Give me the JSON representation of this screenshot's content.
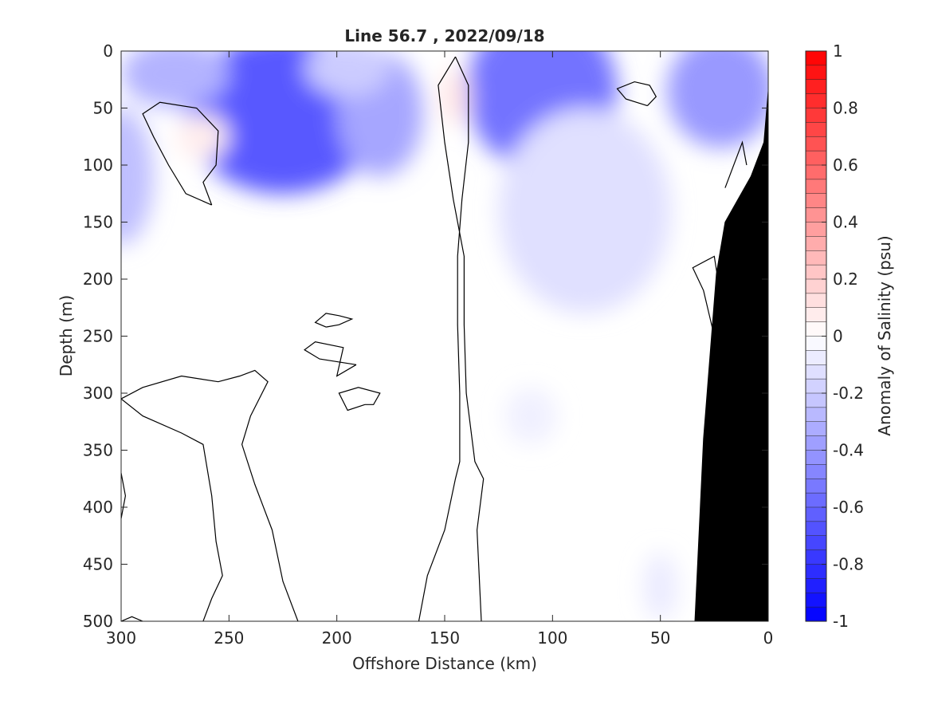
{
  "chart_data": {
    "type": "heatmap",
    "title": "Line 56.7 , 2022/09/18",
    "xlabel": "Offshore Distance (km)",
    "ylabel": "Depth (m)",
    "colorbar_label": "Anomaly of Salinity (psu)",
    "xlim": [
      300,
      0
    ],
    "ylim": [
      0,
      500
    ],
    "x_reversed": true,
    "y_reversed": true,
    "x_ticks": [
      300,
      250,
      200,
      150,
      100,
      50,
      0
    ],
    "y_ticks": [
      0,
      50,
      100,
      150,
      200,
      250,
      300,
      350,
      400,
      450,
      500
    ],
    "colorbar": {
      "range": [
        -1,
        1
      ],
      "levels": 40,
      "ticks": [
        1,
        0.8,
        0.6,
        0.4,
        0.2,
        0,
        -0.2,
        -0.4,
        -0.6,
        -0.8,
        -1
      ],
      "tick_labels": [
        "1",
        "0.8",
        "0.6",
        "0.4",
        "0.2",
        "0",
        "-0.2",
        "-0.4",
        "-0.6",
        "-0.8",
        "-1"
      ],
      "colormap": "blue-white-red",
      "low_color": "#0000ff",
      "mid_color": "#ffffff",
      "high_color": "#ff0000"
    },
    "anomaly_features": [
      {
        "x": 225,
        "depth": 55,
        "value": -0.65,
        "rx": 45,
        "ry": 70
      },
      {
        "x": 275,
        "depth": 20,
        "value": -0.3,
        "rx": 25,
        "ry": 30
      },
      {
        "x": 300,
        "depth": 110,
        "value": -0.25,
        "rx": 15,
        "ry": 60
      },
      {
        "x": 180,
        "depth": 55,
        "value": -0.35,
        "rx": 20,
        "ry": 55
      },
      {
        "x": 195,
        "depth": 15,
        "value": -0.2,
        "rx": 20,
        "ry": 25
      },
      {
        "x": 105,
        "depth": 35,
        "value": -0.55,
        "rx": 35,
        "ry": 70
      },
      {
        "x": 22,
        "depth": 35,
        "value": -0.4,
        "rx": 25,
        "ry": 50
      },
      {
        "x": 85,
        "depth": 140,
        "value": -0.12,
        "rx": 40,
        "ry": 90
      },
      {
        "x": 110,
        "depth": 320,
        "value": -0.06,
        "rx": 12,
        "ry": 25
      },
      {
        "x": 50,
        "depth": 470,
        "value": -0.08,
        "rx": 8,
        "ry": 30
      },
      {
        "x": 262,
        "depth": 75,
        "value": 0.07,
        "rx": 12,
        "ry": 20
      },
      {
        "x": 145,
        "depth": 40,
        "value": 0.1,
        "rx": 7,
        "ry": 25
      }
    ],
    "zero_contours": [
      [
        [
          258,
          135
        ],
        [
          270,
          125
        ],
        [
          278,
          100
        ],
        [
          285,
          75
        ],
        [
          290,
          55
        ],
        [
          282,
          45
        ],
        [
          265,
          50
        ],
        [
          255,
          70
        ],
        [
          256,
          100
        ],
        [
          262,
          115
        ],
        [
          258,
          135
        ]
      ],
      [
        [
          145,
          5
        ],
        [
          153,
          30
        ],
        [
          150,
          80
        ],
        [
          146,
          130
        ],
        [
          141,
          180
        ],
        [
          141,
          240
        ],
        [
          140,
          300
        ],
        [
          136,
          360
        ],
        [
          132,
          375
        ],
        [
          135,
          420
        ],
        [
          133,
          500
        ]
      ],
      [
        [
          145,
          5
        ],
        [
          139,
          30
        ],
        [
          139,
          80
        ],
        [
          142,
          130
        ],
        [
          144,
          180
        ],
        [
          144,
          240
        ],
        [
          143,
          300
        ],
        [
          143,
          360
        ],
        [
          145,
          375
        ],
        [
          150,
          420
        ],
        [
          158,
          460
        ],
        [
          162,
          500
        ]
      ],
      [
        [
          300,
          305
        ],
        [
          290,
          295
        ],
        [
          272,
          285
        ],
        [
          255,
          290
        ],
        [
          245,
          285
        ],
        [
          238,
          280
        ],
        [
          232,
          290
        ],
        [
          240,
          320
        ],
        [
          244,
          345
        ],
        [
          238,
          380
        ],
        [
          230,
          420
        ],
        [
          225,
          465
        ],
        [
          218,
          500
        ]
      ],
      [
        [
          300,
          305
        ],
        [
          290,
          320
        ],
        [
          272,
          335
        ],
        [
          262,
          345
        ],
        [
          258,
          390
        ],
        [
          256,
          430
        ],
        [
          253,
          460
        ],
        [
          258,
          480
        ],
        [
          262,
          500
        ]
      ],
      [
        [
          300,
          370
        ],
        [
          298,
          390
        ],
        [
          300,
          410
        ]
      ],
      [
        [
          300,
          500
        ],
        [
          295,
          496
        ],
        [
          290,
          500
        ]
      ],
      [
        [
          205,
          242
        ],
        [
          199,
          240
        ],
        [
          193,
          235
        ],
        [
          199,
          232
        ],
        [
          205,
          230
        ],
        [
          210,
          238
        ],
        [
          205,
          242
        ]
      ],
      [
        [
          191,
          275
        ],
        [
          200,
          285
        ],
        [
          197,
          260
        ],
        [
          210,
          255
        ],
        [
          215,
          262
        ],
        [
          208,
          270
        ],
        [
          191,
          275
        ]
      ],
      [
        [
          187,
          310
        ],
        [
          195,
          315
        ],
        [
          199,
          300
        ],
        [
          190,
          295
        ],
        [
          180,
          300
        ],
        [
          183,
          310
        ],
        [
          187,
          310
        ]
      ],
      [
        [
          56,
          48
        ],
        [
          66,
          42
        ],
        [
          70,
          33
        ],
        [
          62,
          27
        ],
        [
          55,
          30
        ],
        [
          52,
          40
        ],
        [
          56,
          48
        ]
      ],
      [
        [
          20,
          240
        ],
        [
          25,
          180
        ],
        [
          35,
          190
        ],
        [
          30,
          210
        ],
        [
          25,
          250
        ]
      ],
      [
        [
          10,
          100
        ],
        [
          12,
          80
        ],
        [
          20,
          120
        ]
      ]
    ],
    "land_mask_polygon": [
      [
        0,
        35
      ],
      [
        2,
        80
      ],
      [
        8,
        110
      ],
      [
        20,
        150
      ],
      [
        24,
        195
      ],
      [
        30,
        340
      ],
      [
        34,
        500
      ],
      [
        0,
        500
      ]
    ]
  }
}
